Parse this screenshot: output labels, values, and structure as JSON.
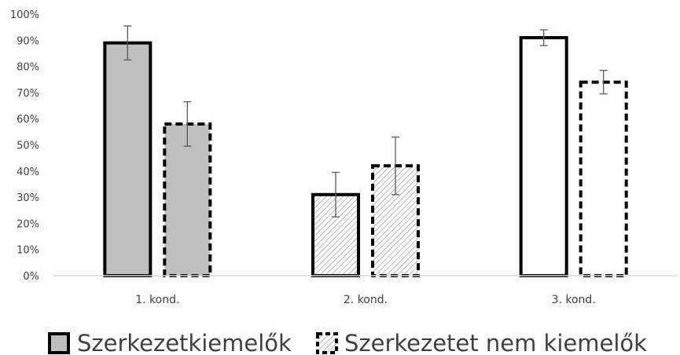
{
  "chart_data": {
    "type": "bar",
    "categories": [
      "1. kond.",
      "2. kond.",
      "3. kond."
    ],
    "ylim": [
      0,
      100
    ],
    "yticks": [
      0,
      10,
      20,
      30,
      40,
      50,
      60,
      70,
      80,
      90,
      100
    ],
    "ytick_labels": [
      "0%",
      "10%",
      "20%",
      "30%",
      "40%",
      "50%",
      "60%",
      "70%",
      "80%",
      "90%",
      "100%"
    ],
    "series": [
      {
        "name": "Szerkezetkiemelők",
        "values": [
          89,
          31,
          91
        ],
        "errors": [
          6.5,
          8.5,
          3
        ],
        "fills": [
          "#bfbfbf",
          "hatch",
          "#ffffff"
        ],
        "border": "solid"
      },
      {
        "name": "Szerkezetet nem kiemelők",
        "values": [
          58,
          42,
          74
        ],
        "errors": [
          8.5,
          11,
          4.5
        ],
        "fills": [
          "#bfbfbf",
          "hatch",
          "#ffffff"
        ],
        "border": "dashed"
      }
    ],
    "legend_position": "bottom",
    "grid": false
  }
}
